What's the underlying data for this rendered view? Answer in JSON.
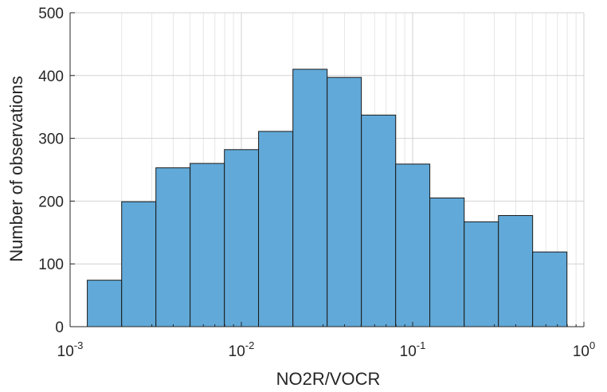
{
  "chart_data": {
    "type": "bar",
    "title": "",
    "xlabel": "NO2R/VOCR",
    "ylabel": "Number of observations",
    "x_scale": "log",
    "xlim": [
      0.001,
      1
    ],
    "ylim": [
      0,
      500
    ],
    "grid": true,
    "legend": "none",
    "bar_color": "#61A9D8",
    "bar_edge_color": "#1a1a1a",
    "x_tick_labels": [
      {
        "base": "10",
        "exp": "-3"
      },
      {
        "base": "10",
        "exp": "-2"
      },
      {
        "base": "10",
        "exp": "-1"
      },
      {
        "base": "10",
        "exp": "0"
      }
    ],
    "y_ticks": [
      0,
      100,
      200,
      300,
      400,
      500
    ],
    "bin_edges": [
      0.00126,
      0.002,
      0.00317,
      0.00502,
      0.00796,
      0.0126,
      0.02,
      0.0317,
      0.0502,
      0.0796,
      0.126,
      0.2,
      0.317,
      0.502,
      0.796
    ],
    "values": [
      74,
      199,
      253,
      260,
      282,
      311,
      410,
      397,
      337,
      259,
      205,
      167,
      177,
      119
    ]
  }
}
